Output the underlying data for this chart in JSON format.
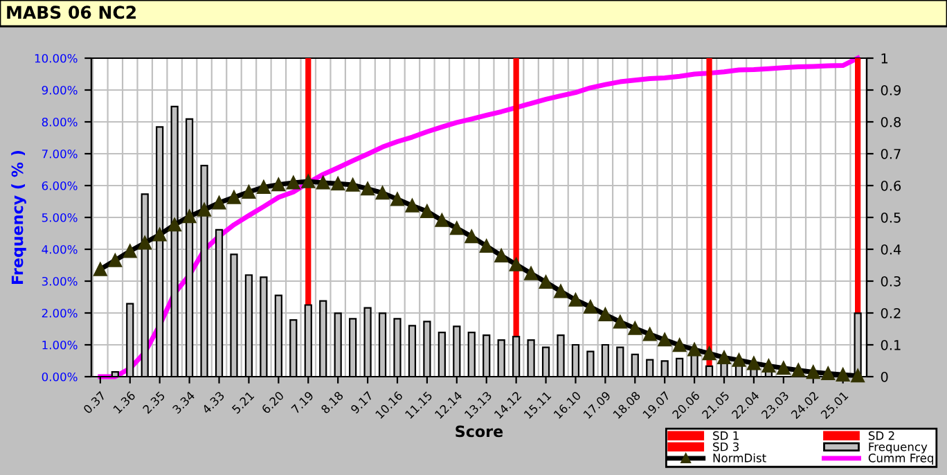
{
  "chart_data": {
    "type": "bar",
    "title": "MABS 06 NC2",
    "xlabel": "Score",
    "ylabel": "Frequency ( % )",
    "categories": [
      "0.37",
      null,
      "1.36",
      null,
      "2.35",
      null,
      "3.34",
      null,
      "4.33",
      null,
      "5.21",
      null,
      "6.20",
      null,
      "7.19",
      null,
      "8.18",
      null,
      "9.17",
      null,
      "10.16",
      null,
      "11.15",
      null,
      "12.14",
      null,
      "13.13",
      null,
      "14.12",
      null,
      "15.11",
      null,
      "16.10",
      null,
      "17.09",
      null,
      "18.08",
      null,
      "19.07",
      null,
      "20.06",
      null,
      "21.05",
      null,
      "22.04",
      null,
      "23.03",
      null,
      "24.02",
      null,
      "25.01",
      null
    ],
    "series": [
      {
        "name": "SD 1",
        "type": "bar",
        "color": "#ff0000",
        "values": [
          null,
          null,
          null,
          null,
          null,
          null,
          null,
          null,
          null,
          null,
          null,
          null,
          null,
          null,
          10,
          null,
          null,
          null,
          null,
          null,
          null,
          null,
          null,
          null,
          null,
          null,
          null,
          null,
          10,
          null,
          null,
          null,
          null,
          null,
          null,
          null,
          null,
          null,
          null,
          null,
          null,
          null,
          null,
          null,
          null,
          null,
          null,
          null,
          null,
          null,
          null,
          null
        ]
      },
      {
        "name": "SD 2",
        "type": "bar",
        "color": "#ff0000",
        "values": [
          null,
          null,
          null,
          null,
          null,
          null,
          null,
          null,
          null,
          null,
          null,
          null,
          null,
          null,
          null,
          null,
          null,
          null,
          null,
          null,
          null,
          null,
          null,
          null,
          null,
          null,
          null,
          null,
          null,
          null,
          null,
          null,
          null,
          null,
          null,
          null,
          null,
          null,
          null,
          null,
          null,
          10,
          null,
          null,
          null,
          null,
          null,
          null,
          null,
          null,
          null,
          null
        ]
      },
      {
        "name": "SD 3",
        "type": "bar",
        "color": "#ff0000",
        "values": [
          null,
          null,
          null,
          null,
          null,
          null,
          null,
          null,
          null,
          null,
          null,
          null,
          null,
          null,
          null,
          null,
          null,
          null,
          null,
          null,
          null,
          null,
          null,
          null,
          null,
          null,
          null,
          null,
          null,
          null,
          null,
          null,
          null,
          null,
          null,
          null,
          null,
          null,
          null,
          null,
          null,
          null,
          null,
          null,
          null,
          null,
          null,
          null,
          null,
          null,
          null,
          10
        ]
      },
      {
        "name": "Frequency",
        "type": "bar",
        "color": "#c0c0c0",
        "values": [
          null,
          0.15,
          2.29,
          5.73,
          7.84,
          8.48,
          8.09,
          6.63,
          4.61,
          3.84,
          3.19,
          3.12,
          2.55,
          1.78,
          2.25,
          2.38,
          1.99,
          1.82,
          2.16,
          1.99,
          1.82,
          1.6,
          1.73,
          1.39,
          1.58,
          1.39,
          1.3,
          1.15,
          1.26,
          1.15,
          0.92,
          1.3,
          1.0,
          0.79,
          1.0,
          0.92,
          0.7,
          0.53,
          0.49,
          0.57,
          0.7,
          0.33,
          0.44,
          0.4,
          0.3,
          0.21,
          null,
          null,
          null,
          0.04,
          0.02,
          1.99
        ]
      },
      {
        "name": "NormDist",
        "type": "line",
        "color": "#000000",
        "marker": "triangle",
        "values": [
          3.37,
          3.65,
          3.94,
          4.2,
          4.46,
          4.77,
          5.03,
          5.24,
          5.46,
          5.63,
          5.8,
          5.95,
          6.03,
          6.09,
          6.13,
          6.09,
          6.06,
          6.02,
          5.9,
          5.77,
          5.57,
          5.37,
          5.19,
          4.91,
          4.66,
          4.4,
          4.1,
          3.8,
          3.52,
          3.24,
          2.97,
          2.68,
          2.41,
          2.19,
          1.95,
          1.72,
          1.52,
          1.33,
          1.16,
          0.99,
          0.85,
          0.73,
          0.6,
          0.52,
          0.42,
          0.34,
          0.27,
          0.2,
          0.14,
          0.1,
          0.06,
          0.03
        ]
      },
      {
        "name": "Cumm Freq",
        "type": "line",
        "axis": "y2",
        "color": "#ff00ff",
        "values": [
          0,
          0,
          0.026,
          0.076,
          0.162,
          0.262,
          0.319,
          0.398,
          0.441,
          0.477,
          0.506,
          0.534,
          0.563,
          0.58,
          0.609,
          0.635,
          0.656,
          0.678,
          0.699,
          0.721,
          0.738,
          0.752,
          0.769,
          0.784,
          0.798,
          0.809,
          0.821,
          0.832,
          0.845,
          0.858,
          0.871,
          0.882,
          0.892,
          0.907,
          0.917,
          0.926,
          0.931,
          0.936,
          0.938,
          0.943,
          0.95,
          0.953,
          0.957,
          0.963,
          0.964,
          0.967,
          0.97,
          0.973,
          0.974,
          0.976,
          0.977,
          1.0
        ]
      }
    ],
    "ylim": [
      0,
      10
    ],
    "yticks": [
      {
        "value": 0,
        "label": "0.00%"
      },
      {
        "value": 1,
        "label": "1.00%"
      },
      {
        "value": 2,
        "label": "2.00%"
      },
      {
        "value": 3,
        "label": "3.00%"
      },
      {
        "value": 4,
        "label": "4.00%"
      },
      {
        "value": 5,
        "label": "5.00%"
      },
      {
        "value": 6,
        "label": "6.00%"
      },
      {
        "value": 7,
        "label": "7.00%"
      },
      {
        "value": 8,
        "label": "8.00%"
      },
      {
        "value": 9,
        "label": "9.00%"
      },
      {
        "value": 10,
        "label": "10.00%"
      }
    ],
    "y2lim": [
      0,
      1
    ],
    "y2ticks": [
      0,
      0.1,
      0.2,
      0.3,
      0.4,
      0.5,
      0.6,
      0.7,
      0.8,
      0.9,
      1
    ],
    "grid": true,
    "legend": "bottom right"
  }
}
